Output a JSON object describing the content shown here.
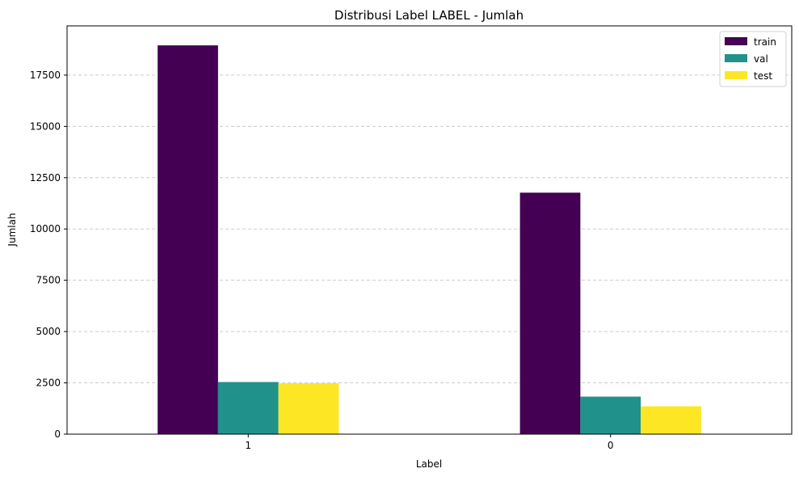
{
  "chart_data": {
    "type": "bar",
    "title": "Distribusi Label LABEL - Jumlah",
    "xlabel": "Label",
    "ylabel": "Jumlah",
    "categories": [
      "1",
      "0"
    ],
    "series": [
      {
        "name": "train",
        "color": "#440154",
        "values": [
          18950,
          11770
        ]
      },
      {
        "name": "val",
        "color": "#21918c",
        "values": [
          2540,
          1830
        ]
      },
      {
        "name": "test",
        "color": "#fde725",
        "values": [
          2480,
          1360
        ]
      }
    ],
    "yticks": [
      0,
      2500,
      5000,
      7500,
      10000,
      12500,
      15000,
      17500
    ],
    "ylim": [
      0,
      19900
    ],
    "grid": "y-dashed",
    "legend_position": "upper right"
  }
}
